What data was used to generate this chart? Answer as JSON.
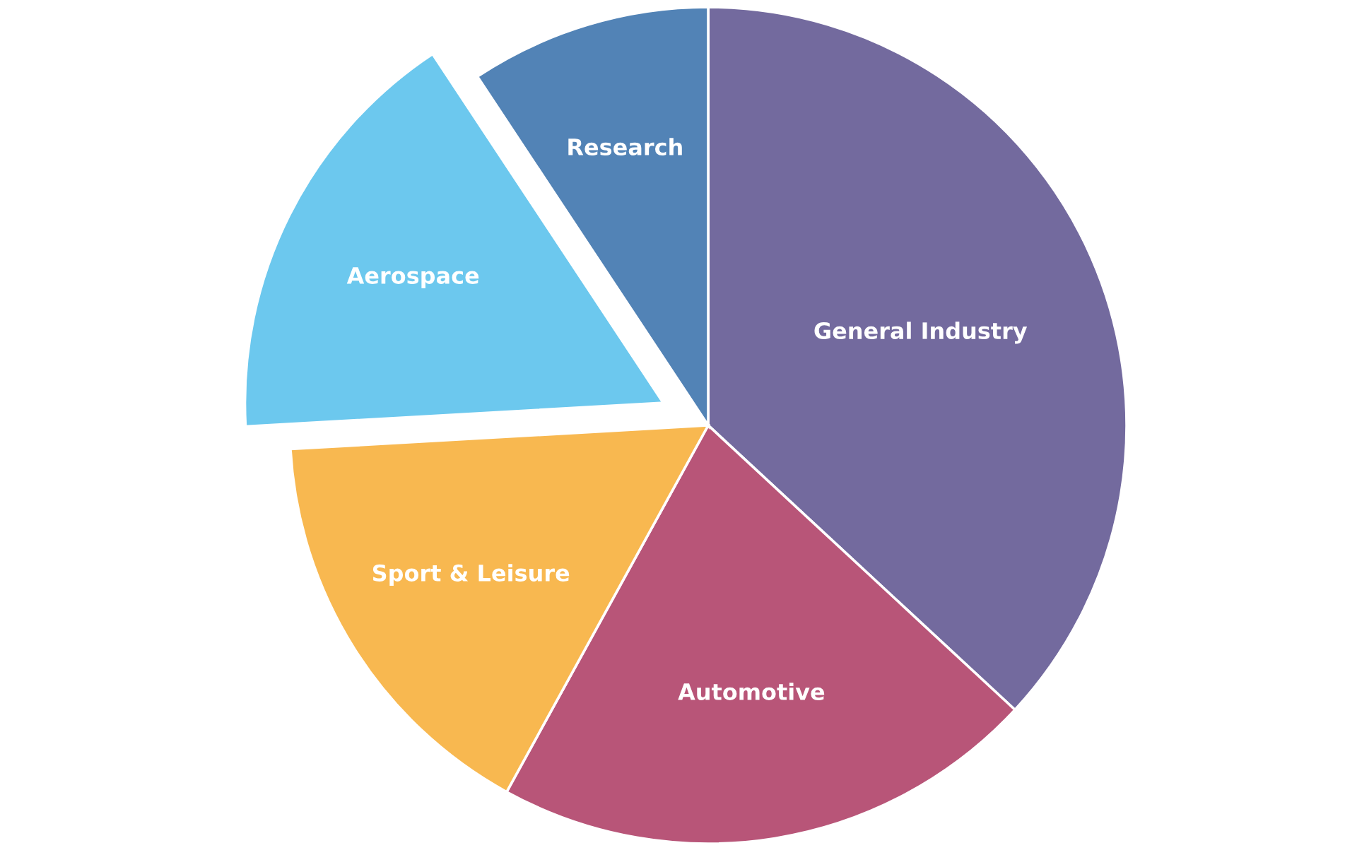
{
  "chart_data": {
    "type": "pie",
    "categories": [
      "General Industry",
      "Automotive",
      "Sport & Leisure",
      "Aerospace",
      "Research"
    ],
    "values": [
      36.9,
      21.1,
      16.1,
      16.6,
      9.3
    ],
    "colors": [
      "#736a9e",
      "#b85578",
      "#f8b850",
      "#6cc8ee",
      "#5283b6"
    ]
  }
}
